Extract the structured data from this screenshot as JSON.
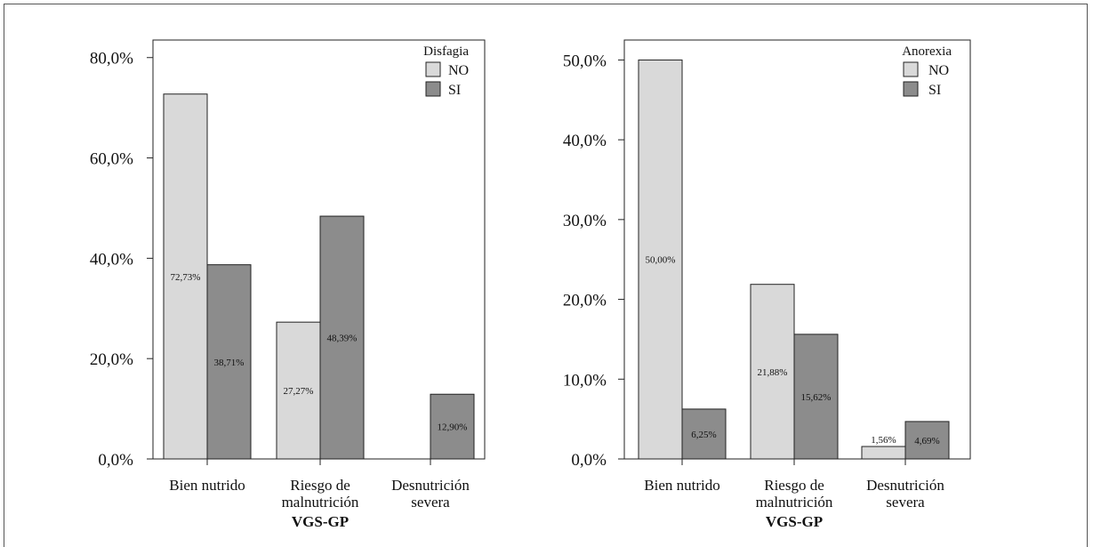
{
  "chart_data": [
    {
      "type": "bar",
      "categories": [
        "Bien nutrido",
        "Riesgo de|malnutrición",
        "Desnutrición|severa"
      ],
      "xlabel": "VGS-GP",
      "ylabel": "",
      "ylim": [
        0,
        83.5
      ],
      "yticks": [
        0,
        20,
        40,
        60,
        80
      ],
      "ytick_labels": [
        "0,0%",
        "20,0%",
        "40,0%",
        "60,0%",
        "80,0%"
      ],
      "legend_title": "Disfagia",
      "legend_position": "top-right",
      "grid": false,
      "series": [
        {
          "name": "NO",
          "color": "#d9d9d9",
          "values": [
            72.73,
            27.27,
            0
          ],
          "labels": [
            "72,73%",
            "27,27%",
            ""
          ]
        },
        {
          "name": "SI",
          "color": "#8c8c8c",
          "values": [
            38.71,
            48.39,
            12.9
          ],
          "labels": [
            "38,71%",
            "48,39%",
            "12,90%"
          ]
        }
      ]
    },
    {
      "type": "bar",
      "categories": [
        "Bien nutrido",
        "Riesgo de|malnutrición",
        "Desnutrición|severa"
      ],
      "xlabel": "VGS-GP",
      "ylabel": "",
      "ylim": [
        0,
        52.5
      ],
      "yticks": [
        0,
        10,
        20,
        30,
        40,
        50
      ],
      "ytick_labels": [
        "0,0%",
        "10,0%",
        "20,0%",
        "30,0%",
        "40,0%",
        "50,0%"
      ],
      "legend_title": "Anorexia",
      "legend_position": "top-right",
      "grid": false,
      "series": [
        {
          "name": "NO",
          "color": "#d9d9d9",
          "values": [
            50.0,
            21.88,
            1.56
          ],
          "labels": [
            "50,00%",
            "21,88%",
            "1,56%"
          ]
        },
        {
          "name": "SI",
          "color": "#8c8c8c",
          "values": [
            6.25,
            15.62,
            4.69
          ],
          "labels": [
            "6,25%",
            "15,62%",
            "4,69%"
          ]
        }
      ]
    }
  ]
}
